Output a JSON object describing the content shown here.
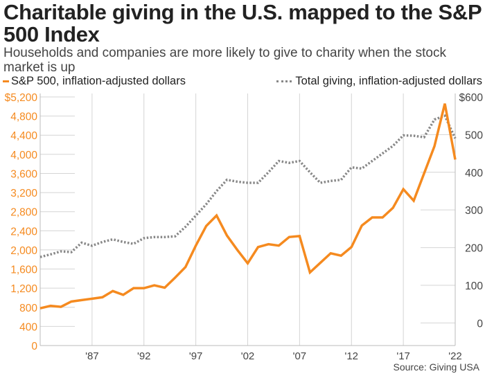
{
  "title": "Charitable giving in the U.S. mapped to the S&P 500 Index",
  "subtitle": "Households and companies are more likely to give to charity when the stock market is up",
  "source": "Source: Giving USA",
  "chart_data": {
    "type": "line",
    "title": "Charitable giving in the U.S. mapped to the S&P 500 Index",
    "x": [
      1982,
      1983,
      1984,
      1985,
      1986,
      1987,
      1988,
      1989,
      1990,
      1991,
      1992,
      1993,
      1994,
      1995,
      1996,
      1997,
      1998,
      1999,
      2000,
      2001,
      2002,
      2003,
      2004,
      2005,
      2006,
      2007,
      2008,
      2009,
      2010,
      2011,
      2012,
      2013,
      2014,
      2015,
      2016,
      2017,
      2018,
      2019,
      2020,
      2021,
      2022
    ],
    "xlim": [
      1982,
      2022
    ],
    "x_ticks": [
      1987,
      1992,
      1997,
      2002,
      2007,
      2012,
      2017,
      2022
    ],
    "x_tick_labels": [
      "'87",
      "'92",
      "'97",
      "'02",
      "'07",
      "'12",
      "'17",
      "'22"
    ],
    "left_axis": {
      "ylim": [
        0,
        5200
      ],
      "ticks": [
        "0",
        "400",
        "800",
        "1,200",
        "1,600",
        "2,000",
        "2,400",
        "2,800",
        "3,200",
        "3,600",
        "4,000",
        "4,400",
        "4,800",
        "$5,200"
      ],
      "color": "#f58a1f"
    },
    "right_axis": {
      "ylim": [
        -60,
        600
      ],
      "ticks": [
        "0",
        "100",
        "200",
        "300",
        "400",
        "500",
        "$600"
      ],
      "color": "#444444"
    },
    "grid": true,
    "legend_placement": "top",
    "series": [
      {
        "name": "S&P 500, inflation-adjusted dollars",
        "axis": "left",
        "style": "solid",
        "color": "#f58a1f",
        "values": [
          780,
          830,
          810,
          920,
          950,
          980,
          1010,
          1140,
          1060,
          1200,
          1200,
          1260,
          1210,
          1420,
          1640,
          2090,
          2500,
          2720,
          2300,
          2000,
          1720,
          2060,
          2120,
          2090,
          2270,
          2290,
          1530,
          1730,
          1930,
          1880,
          2060,
          2510,
          2680,
          2680,
          2880,
          3270,
          3030,
          3600,
          4170,
          5060,
          3890
        ]
      },
      {
        "name": "Total giving, inflation-adjusted dollars",
        "axis": "right",
        "style": "dotted",
        "color": "#888888",
        "values": [
          175,
          182,
          190,
          188,
          213,
          205,
          215,
          222,
          215,
          210,
          225,
          228,
          228,
          230,
          255,
          285,
          315,
          350,
          380,
          375,
          372,
          372,
          400,
          430,
          425,
          430,
          400,
          372,
          377,
          380,
          413,
          410,
          430,
          450,
          470,
          498,
          497,
          493,
          540,
          550,
          490
        ]
      }
    ]
  }
}
